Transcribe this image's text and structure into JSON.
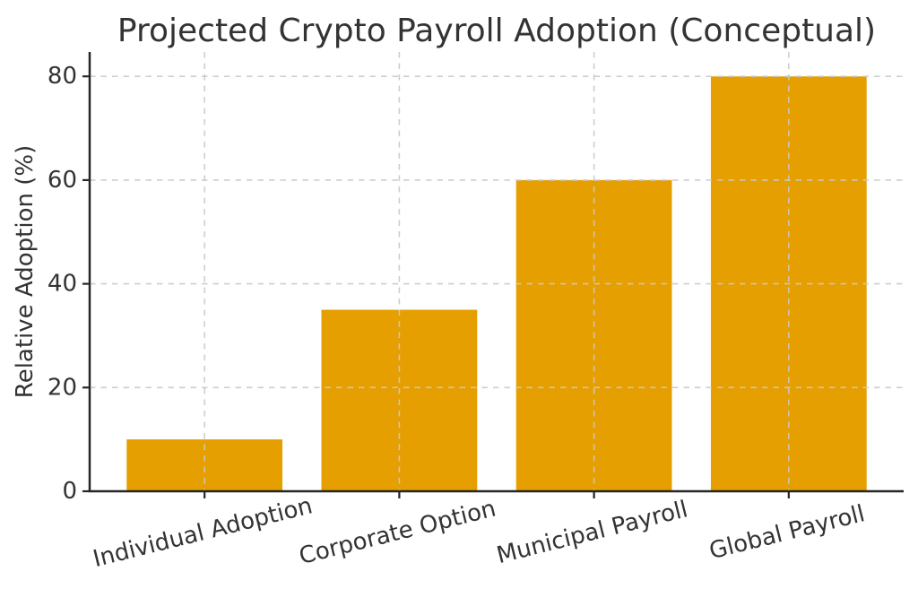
{
  "page": {
    "background": "#ffffff"
  },
  "chart_data": {
    "type": "bar",
    "title": "Projected Crypto Payroll Adoption (Conceptual)",
    "xlabel": "",
    "ylabel": "Relative Adoption (%)",
    "categories": [
      "Individual Adoption",
      "Corporate Option",
      "Municipal Payroll",
      "Global Payroll"
    ],
    "values": [
      10,
      35,
      60,
      80
    ],
    "yticks": [
      0,
      20,
      40,
      60,
      80
    ],
    "ylim": [
      0,
      84.7
    ],
    "xlim": [
      -0.59,
      3.59
    ],
    "bar_width_fraction": 0.8,
    "grid": true,
    "grid_style": "dashed",
    "legend": "none",
    "tick_label_rotation_deg": -14,
    "colors": {
      "bar": "#E69F00",
      "grid": "#C9C9C9",
      "axis": "#262626",
      "text": "#333333"
    }
  }
}
